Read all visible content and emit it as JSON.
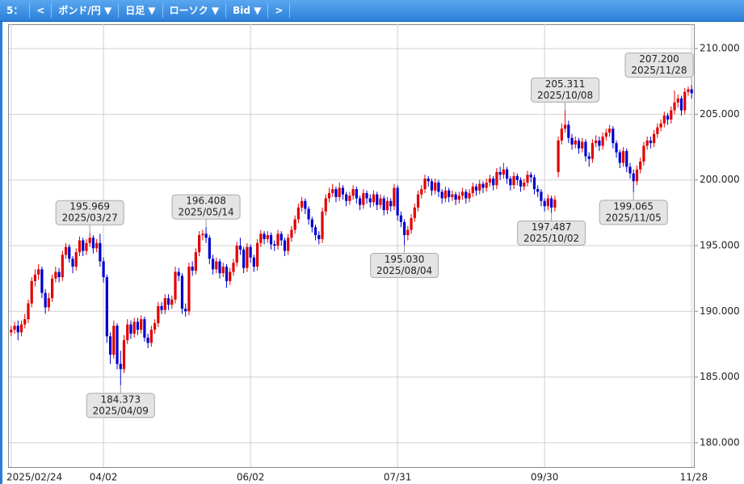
{
  "toolbar": {
    "items": [
      "5：",
      "<",
      "ポンド/円 ▼",
      "日足 ▼",
      "ローソク ▼",
      "Bid ▼",
      ">"
    ]
  },
  "chart_data": {
    "type": "candlestick",
    "up_color": "#e00000",
    "down_color": "#0000d0",
    "grid": true,
    "ylim": [
      178.15,
      211.85
    ],
    "yticks": [
      {
        "value": 180,
        "label": "180.000"
      },
      {
        "value": 185,
        "label": "185.000"
      },
      {
        "value": 190,
        "label": "190.000"
      },
      {
        "value": 195,
        "label": "195.000"
      },
      {
        "value": 200,
        "label": "200.000"
      },
      {
        "value": 205,
        "label": "205.000"
      },
      {
        "value": 210,
        "label": "210.000"
      }
    ],
    "categories": [
      "2025/02/24",
      null,
      null,
      null,
      null,
      null,
      null,
      null,
      null,
      null,
      null,
      null,
      null,
      null,
      null,
      null,
      null,
      null,
      null,
      null,
      null,
      null,
      null,
      null,
      null,
      null,
      null,
      "04/02",
      null,
      null,
      null,
      null,
      null,
      null,
      null,
      null,
      null,
      null,
      null,
      null,
      null,
      null,
      null,
      null,
      null,
      null,
      null,
      null,
      null,
      null,
      null,
      null,
      null,
      null,
      null,
      null,
      null,
      null,
      null,
      null,
      null,
      null,
      null,
      null,
      null,
      null,
      null,
      null,
      null,
      null,
      "06/02",
      null,
      null,
      null,
      null,
      null,
      null,
      null,
      null,
      null,
      null,
      null,
      null,
      null,
      null,
      null,
      null,
      null,
      null,
      null,
      null,
      null,
      null,
      null,
      null,
      null,
      null,
      null,
      null,
      null,
      null,
      null,
      null,
      null,
      null,
      null,
      null,
      null,
      null,
      null,
      null,
      null,
      null,
      "07/31",
      null,
      null,
      null,
      null,
      null,
      null,
      null,
      null,
      null,
      null,
      null,
      null,
      null,
      null,
      null,
      null,
      null,
      null,
      null,
      null,
      null,
      null,
      null,
      null,
      null,
      null,
      null,
      null,
      null,
      null,
      null,
      null,
      null,
      null,
      null,
      null,
      null,
      null,
      null,
      null,
      null,
      null,
      "09/30",
      null,
      null,
      null,
      null,
      null,
      null,
      null,
      null,
      null,
      null,
      null,
      null,
      null,
      null,
      null,
      null,
      null,
      null,
      null,
      null,
      null,
      null,
      null,
      null,
      null,
      null,
      null,
      null,
      null,
      null,
      null,
      null,
      null,
      null,
      null,
      null,
      null,
      null,
      null,
      null,
      null,
      null,
      "11/28"
    ],
    "ohlc": [
      [
        188.4,
        188.9,
        188.1,
        188.6
      ],
      [
        188.6,
        189.2,
        188.3,
        188.9
      ],
      [
        188.9,
        189.3,
        187.8,
        188.4
      ],
      [
        188.4,
        189.3,
        188.1,
        189.0
      ],
      [
        189.0,
        189.8,
        188.7,
        189.4
      ],
      [
        189.4,
        190.9,
        189.1,
        190.6
      ],
      [
        190.6,
        192.6,
        190.3,
        192.3
      ],
      [
        192.3,
        193.2,
        191.9,
        192.8
      ],
      [
        192.8,
        193.6,
        192.4,
        193.2
      ],
      [
        193.2,
        193.4,
        191.0,
        191.4
      ],
      [
        191.4,
        191.7,
        189.8,
        190.3
      ],
      [
        190.3,
        191.4,
        190.0,
        191.0
      ],
      [
        191.0,
        192.8,
        190.7,
        192.5
      ],
      [
        192.5,
        193.4,
        192.2,
        193.0
      ],
      [
        193.0,
        193.3,
        192.2,
        192.6
      ],
      [
        192.6,
        194.6,
        192.3,
        194.3
      ],
      [
        194.3,
        195.2,
        194.0,
        194.9
      ],
      [
        194.9,
        195.1,
        193.7,
        194.0
      ],
      [
        194.0,
        194.2,
        192.9,
        193.4
      ],
      [
        193.4,
        194.8,
        193.1,
        194.5
      ],
      [
        194.5,
        195.7,
        194.2,
        195.4
      ],
      [
        195.4,
        195.6,
        194.2,
        194.6
      ],
      [
        194.6,
        195.5,
        194.3,
        195.2
      ],
      [
        195.2,
        195.969,
        194.9,
        195.6
      ],
      [
        195.6,
        195.8,
        194.4,
        194.8
      ],
      [
        194.8,
        195.5,
        194.5,
        195.2
      ],
      [
        195.2,
        195.9,
        193.4,
        193.8
      ],
      [
        193.8,
        194.1,
        192.2,
        192.6
      ],
      [
        192.6,
        192.8,
        187.6,
        188.1
      ],
      [
        188.1,
        188.4,
        186.0,
        186.7
      ],
      [
        186.7,
        189.3,
        186.4,
        188.9
      ],
      [
        188.9,
        189.1,
        185.6,
        186.0
      ],
      [
        186.0,
        187.0,
        184.373,
        185.6
      ],
      [
        185.6,
        188.2,
        185.3,
        187.8
      ],
      [
        187.8,
        189.4,
        187.5,
        189.0
      ],
      [
        189.0,
        189.3,
        187.9,
        188.3
      ],
      [
        188.3,
        189.5,
        188.0,
        189.2
      ],
      [
        189.2,
        189.5,
        188.2,
        188.6
      ],
      [
        188.6,
        189.7,
        188.3,
        189.4
      ],
      [
        189.4,
        189.6,
        187.7,
        188.0
      ],
      [
        188.0,
        188.3,
        187.2,
        187.6
      ],
      [
        187.6,
        188.9,
        187.3,
        188.6
      ],
      [
        188.6,
        189.4,
        188.3,
        189.1
      ],
      [
        189.1,
        190.7,
        188.8,
        190.4
      ],
      [
        190.4,
        190.7,
        189.8,
        190.1
      ],
      [
        190.1,
        191.3,
        189.8,
        191.0
      ],
      [
        191.0,
        191.3,
        190.1,
        190.5
      ],
      [
        190.5,
        191.2,
        190.2,
        190.9
      ],
      [
        190.9,
        193.4,
        190.6,
        193.0
      ],
      [
        193.0,
        193.3,
        192.3,
        192.7
      ],
      [
        192.7,
        192.9,
        189.8,
        190.2
      ],
      [
        190.2,
        190.6,
        189.6,
        190.0
      ],
      [
        190.0,
        193.7,
        189.7,
        193.4
      ],
      [
        193.4,
        193.8,
        192.7,
        193.1
      ],
      [
        193.1,
        194.8,
        192.8,
        194.5
      ],
      [
        194.5,
        196.1,
        194.2,
        195.8
      ],
      [
        195.8,
        196.2,
        195.4,
        195.9
      ],
      [
        195.9,
        196.408,
        195.2,
        195.6
      ],
      [
        195.6,
        195.8,
        193.6,
        194.0
      ],
      [
        194.0,
        194.3,
        192.8,
        193.2
      ],
      [
        193.2,
        194.1,
        192.9,
        193.8
      ],
      [
        193.8,
        194.0,
        192.5,
        192.9
      ],
      [
        192.9,
        193.7,
        192.6,
        193.4
      ],
      [
        193.4,
        193.6,
        191.8,
        192.3
      ],
      [
        192.3,
        193.3,
        192.0,
        193.0
      ],
      [
        193.0,
        194.0,
        192.7,
        193.7
      ],
      [
        193.7,
        195.3,
        193.4,
        195.0
      ],
      [
        195.0,
        195.6,
        194.3,
        194.7
      ],
      [
        194.7,
        194.9,
        192.9,
        193.3
      ],
      [
        193.3,
        195.2,
        193.0,
        194.9
      ],
      [
        194.9,
        195.1,
        193.7,
        194.1
      ],
      [
        194.1,
        194.3,
        193.0,
        193.4
      ],
      [
        193.4,
        195.5,
        193.1,
        195.2
      ],
      [
        195.2,
        196.2,
        194.9,
        195.9
      ],
      [
        195.9,
        196.1,
        195.1,
        195.5
      ],
      [
        195.5,
        196.1,
        195.2,
        195.8
      ],
      [
        195.8,
        196.0,
        194.7,
        195.1
      ],
      [
        195.1,
        195.4,
        194.6,
        195.0
      ],
      [
        195.0,
        196.2,
        194.7,
        195.9
      ],
      [
        195.9,
        196.1,
        195.0,
        195.4
      ],
      [
        195.4,
        195.6,
        194.2,
        194.6
      ],
      [
        194.6,
        195.9,
        194.3,
        195.6
      ],
      [
        195.6,
        196.5,
        195.3,
        196.2
      ],
      [
        196.2,
        197.3,
        195.9,
        197.0
      ],
      [
        197.0,
        198.2,
        196.7,
        197.9
      ],
      [
        197.9,
        198.7,
        197.6,
        198.4
      ],
      [
        198.4,
        198.6,
        197.4,
        197.8
      ],
      [
        197.8,
        198.0,
        196.6,
        197.0
      ],
      [
        197.0,
        197.2,
        196.0,
        196.4
      ],
      [
        196.4,
        196.6,
        195.4,
        195.8
      ],
      [
        195.8,
        196.1,
        195.1,
        195.5
      ],
      [
        195.5,
        197.9,
        195.2,
        197.6
      ],
      [
        197.6,
        198.9,
        197.3,
        198.6
      ],
      [
        198.6,
        199.4,
        198.3,
        199.0
      ],
      [
        199.0,
        199.7,
        198.7,
        199.3
      ],
      [
        199.3,
        199.5,
        198.3,
        198.7
      ],
      [
        198.7,
        199.8,
        198.4,
        199.4
      ],
      [
        199.4,
        199.6,
        198.5,
        198.9
      ],
      [
        198.9,
        199.1,
        198.0,
        198.4
      ],
      [
        198.4,
        199.1,
        198.1,
        198.8
      ],
      [
        198.8,
        199.6,
        198.5,
        199.3
      ],
      [
        199.3,
        199.5,
        198.2,
        198.6
      ],
      [
        198.6,
        198.8,
        197.7,
        198.1
      ],
      [
        198.1,
        199.3,
        197.8,
        199.0
      ],
      [
        199.0,
        199.2,
        198.2,
        198.6
      ],
      [
        198.6,
        198.9,
        197.9,
        198.3
      ],
      [
        198.3,
        199.2,
        198.0,
        198.9
      ],
      [
        198.9,
        199.1,
        197.7,
        198.1
      ],
      [
        198.1,
        198.9,
        197.8,
        198.6
      ],
      [
        198.6,
        198.8,
        197.3,
        197.7
      ],
      [
        197.7,
        198.7,
        197.4,
        198.4
      ],
      [
        198.4,
        198.6,
        197.6,
        198.0
      ],
      [
        198.0,
        199.7,
        197.7,
        199.4
      ],
      [
        199.4,
        199.6,
        196.9,
        197.3
      ],
      [
        197.3,
        197.6,
        196.4,
        196.8
      ],
      [
        196.8,
        197.0,
        195.03,
        195.8
      ],
      [
        195.8,
        196.5,
        195.4,
        196.2
      ],
      [
        196.2,
        197.4,
        195.9,
        197.1
      ],
      [
        197.1,
        198.2,
        196.8,
        197.9
      ],
      [
        197.9,
        199.2,
        197.6,
        198.9
      ],
      [
        198.9,
        199.6,
        198.6,
        199.3
      ],
      [
        199.3,
        200.4,
        199.0,
        200.1
      ],
      [
        200.1,
        200.3,
        199.5,
        199.9
      ],
      [
        199.9,
        200.1,
        198.8,
        199.2
      ],
      [
        199.2,
        200.1,
        198.9,
        199.8
      ],
      [
        199.8,
        200.0,
        198.7,
        199.1
      ],
      [
        199.1,
        199.3,
        198.2,
        198.6
      ],
      [
        198.6,
        199.5,
        198.3,
        199.2
      ],
      [
        199.2,
        199.4,
        198.3,
        198.7
      ],
      [
        198.7,
        199.2,
        198.4,
        198.9
      ],
      [
        198.9,
        199.1,
        198.1,
        198.5
      ],
      [
        198.5,
        199.1,
        198.2,
        198.8
      ],
      [
        198.8,
        199.4,
        198.5,
        199.1
      ],
      [
        199.1,
        199.3,
        198.2,
        198.6
      ],
      [
        198.6,
        199.3,
        198.3,
        199.0
      ],
      [
        199.0,
        199.8,
        198.7,
        199.5
      ],
      [
        199.5,
        199.7,
        198.8,
        199.2
      ],
      [
        199.2,
        200.0,
        198.9,
        199.7
      ],
      [
        199.7,
        199.9,
        199.0,
        199.4
      ],
      [
        199.4,
        200.1,
        199.1,
        199.8
      ],
      [
        199.8,
        200.4,
        199.5,
        200.1
      ],
      [
        200.1,
        200.3,
        199.2,
        199.6
      ],
      [
        199.6,
        200.9,
        199.3,
        200.6
      ],
      [
        200.6,
        201.0,
        200.0,
        200.4
      ],
      [
        200.4,
        201.3,
        200.1,
        200.8
      ],
      [
        200.8,
        201.0,
        199.7,
        200.1
      ],
      [
        200.1,
        200.3,
        199.2,
        199.6
      ],
      [
        199.6,
        200.6,
        199.3,
        200.3
      ],
      [
        200.3,
        200.5,
        199.6,
        200.0
      ],
      [
        200.0,
        200.2,
        199.1,
        199.5
      ],
      [
        199.5,
        200.1,
        199.2,
        199.8
      ],
      [
        199.8,
        200.7,
        199.5,
        200.4
      ],
      [
        200.4,
        200.6,
        199.8,
        200.2
      ],
      [
        200.2,
        200.4,
        198.9,
        199.3
      ],
      [
        199.3,
        199.6,
        198.7,
        199.1
      ],
      [
        199.1,
        199.3,
        198.0,
        198.4
      ],
      [
        198.4,
        198.6,
        197.6,
        198.0
      ],
      [
        198.0,
        198.9,
        197.7,
        198.6
      ],
      [
        198.6,
        198.8,
        197.487,
        197.9
      ],
      [
        197.9,
        198.8,
        197.6,
        198.5
      ],
      [
        200.6,
        203.3,
        200.2,
        203.0
      ],
      [
        203.0,
        204.3,
        202.7,
        203.9
      ],
      [
        203.9,
        205.311,
        203.6,
        204.2
      ],
      [
        204.2,
        204.5,
        202.8,
        203.2
      ],
      [
        203.2,
        203.5,
        202.3,
        202.7
      ],
      [
        202.7,
        203.3,
        202.4,
        203.0
      ],
      [
        203.0,
        203.2,
        202.0,
        202.4
      ],
      [
        202.4,
        203.2,
        202.1,
        202.9
      ],
      [
        202.9,
        203.1,
        201.4,
        201.8
      ],
      [
        201.8,
        202.1,
        201.0,
        201.6
      ],
      [
        201.6,
        203.1,
        201.3,
        202.8
      ],
      [
        202.8,
        203.4,
        202.5,
        203.0
      ],
      [
        203.0,
        203.3,
        202.2,
        202.6
      ],
      [
        202.6,
        203.6,
        202.3,
        203.3
      ],
      [
        203.3,
        203.9,
        203.0,
        203.6
      ],
      [
        203.6,
        204.2,
        203.3,
        203.9
      ],
      [
        203.9,
        204.1,
        202.4,
        202.8
      ],
      [
        202.8,
        203.0,
        201.7,
        202.1
      ],
      [
        202.1,
        202.3,
        200.9,
        201.3
      ],
      [
        201.3,
        202.5,
        201.0,
        202.2
      ],
      [
        202.2,
        202.4,
        200.6,
        201.0
      ],
      [
        201.0,
        201.3,
        200.1,
        200.5
      ],
      [
        200.5,
        200.8,
        199.065,
        199.9
      ],
      [
        199.9,
        201.1,
        199.6,
        200.8
      ],
      [
        200.8,
        201.7,
        200.5,
        201.4
      ],
      [
        201.4,
        202.9,
        201.1,
        202.6
      ],
      [
        202.6,
        203.3,
        202.3,
        203.0
      ],
      [
        203.0,
        203.3,
        202.4,
        202.8
      ],
      [
        202.8,
        203.8,
        202.5,
        203.5
      ],
      [
        203.5,
        204.3,
        203.2,
        204.0
      ],
      [
        204.0,
        204.6,
        203.7,
        204.3
      ],
      [
        204.3,
        205.2,
        204.0,
        204.9
      ],
      [
        204.9,
        205.1,
        204.2,
        204.6
      ],
      [
        204.6,
        205.6,
        204.3,
        205.3
      ],
      [
        205.3,
        206.8,
        205.0,
        205.9
      ],
      [
        205.9,
        206.5,
        205.5,
        206.2
      ],
      [
        206.2,
        206.4,
        204.9,
        205.3
      ],
      [
        205.3,
        207.0,
        205.0,
        206.7
      ],
      [
        206.7,
        207.1,
        206.4,
        206.9
      ],
      [
        206.9,
        207.2,
        206.2,
        206.6
      ]
    ],
    "annotations": [
      {
        "value": 195.969,
        "label": "195.969",
        "date": "2025/03/27"
      },
      {
        "value": 184.373,
        "label": "184.373",
        "date": "2025/04/09"
      },
      {
        "value": 196.408,
        "label": "196.408",
        "date": "2025/05/14"
      },
      {
        "value": 195.03,
        "label": "195.030",
        "date": "2025/08/04"
      },
      {
        "value": 197.487,
        "label": "197.487",
        "date": "2025/10/02"
      },
      {
        "value": 205.311,
        "label": "205.311",
        "date": "2025/10/08"
      },
      {
        "value": 199.065,
        "label": "199.065",
        "date": "2025/11/05"
      },
      {
        "value": 207.2,
        "label": "207.200",
        "date": "2025/11/28"
      }
    ]
  }
}
